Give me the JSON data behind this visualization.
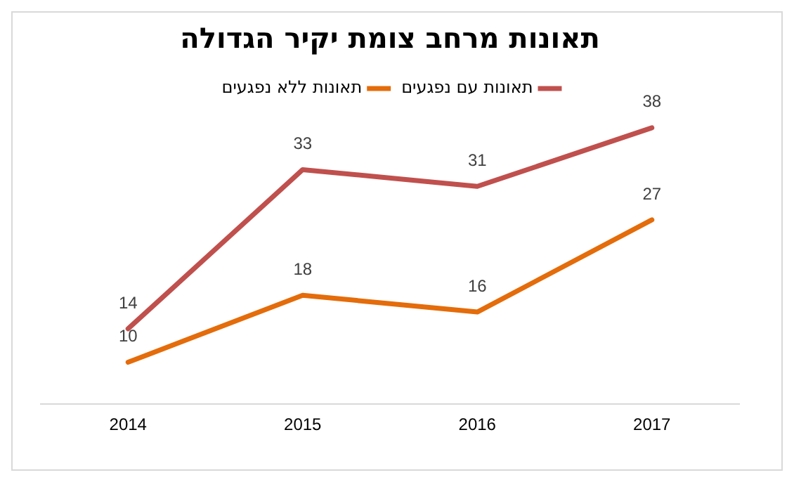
{
  "chart_data": {
    "type": "line",
    "title": "תאונות מרחב צומת יקיר הגדולה",
    "categories": [
      "2014",
      "2015",
      "2016",
      "2017"
    ],
    "series": [
      {
        "name": "תאונות עם נפגעים",
        "color": "#c0504d",
        "values": [
          14,
          33,
          31,
          38
        ]
      },
      {
        "name": "תאונות ללא נפגעים",
        "color": "#e46c0a",
        "values": [
          10,
          18,
          16,
          27
        ]
      }
    ],
    "data_labels": true,
    "legend": "top",
    "grid": false,
    "marker": "none",
    "line_style": "solid"
  }
}
